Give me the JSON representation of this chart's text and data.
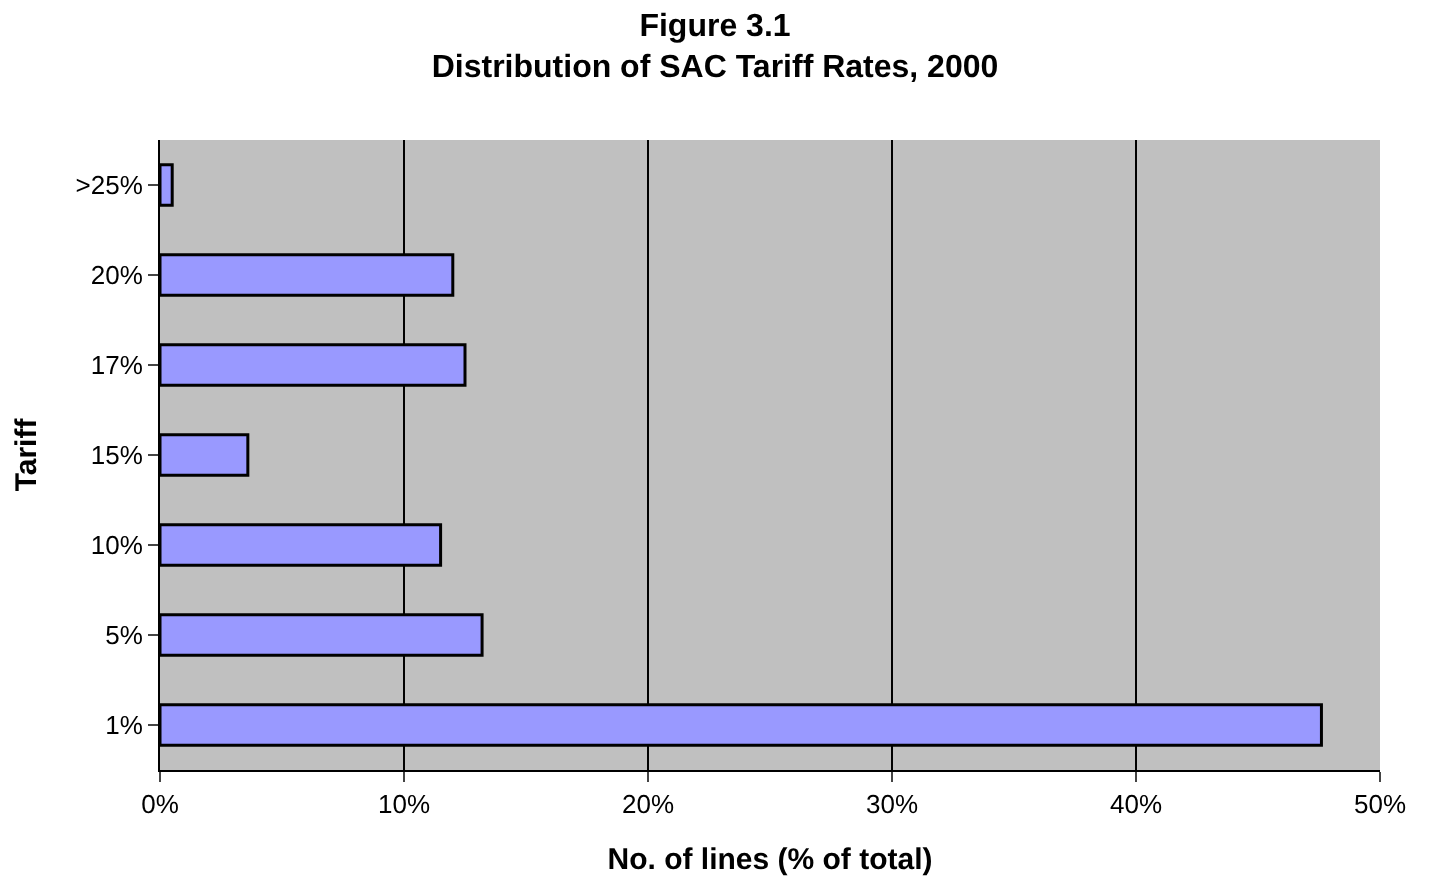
{
  "chart_data": {
    "type": "bar",
    "orientation": "horizontal",
    "title": "Figure 3.1\nDistribution of SAC Tariff Rates, 2000",
    "xlabel": "No. of lines (% of total)",
    "ylabel": "Tariff",
    "categories": [
      ">25%",
      "20%",
      "17%",
      "15%",
      "10%",
      "5%",
      "1%"
    ],
    "series": [
      {
        "color": "#9999ff",
        "values": [
          0.5,
          12.0,
          12.5,
          3.6,
          11.5,
          13.2,
          47.6
        ]
      }
    ],
    "xlim": [
      0,
      50
    ],
    "xticks": [
      {
        "value": 0,
        "label": "0%"
      },
      {
        "value": 10,
        "label": "10%"
      },
      {
        "value": 20,
        "label": "20%"
      },
      {
        "value": 30,
        "label": "30%"
      },
      {
        "value": 40,
        "label": "40%"
      },
      {
        "value": 50,
        "label": "50%"
      }
    ],
    "grid": "x"
  }
}
